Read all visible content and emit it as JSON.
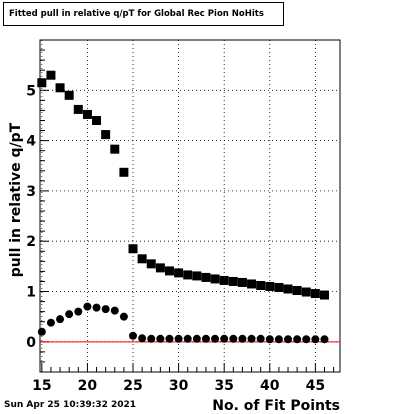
{
  "title": "Fitted pull in relative q/pT for Global Rec Pion NoHits",
  "timestamp": "Sun Apr 25 10:39:32 2021",
  "chart_data": {
    "type": "scatter",
    "title": "Fitted pull in relative q/pT for Global Rec Pion NoHits",
    "xlabel": "No. of Fit Points",
    "ylabel": "pull in relative q/pT",
    "xlim": [
      14.8,
      47.7
    ],
    "ylim": [
      -0.6,
      6.0
    ],
    "x_ticks": [
      15,
      20,
      25,
      30,
      35,
      40,
      45
    ],
    "y_ticks": [
      0,
      1,
      2,
      3,
      4,
      5
    ],
    "grid": true,
    "reference_line": {
      "y": 0,
      "color": "#ff0000"
    },
    "series": [
      {
        "marker": "square",
        "color": "#000000",
        "x": [
          15,
          16,
          17,
          18,
          19,
          20,
          21,
          22,
          23,
          24,
          25,
          26,
          27,
          28,
          29,
          30,
          31,
          32,
          33,
          34,
          35,
          36,
          37,
          38,
          39,
          40,
          41,
          42,
          43,
          44,
          45,
          46
        ],
        "y": [
          5.15,
          5.3,
          5.05,
          4.9,
          4.62,
          4.52,
          4.4,
          4.12,
          3.83,
          3.37,
          1.85,
          1.65,
          1.55,
          1.47,
          1.41,
          1.37,
          1.33,
          1.31,
          1.28,
          1.25,
          1.22,
          1.2,
          1.18,
          1.15,
          1.12,
          1.1,
          1.08,
          1.05,
          1.02,
          0.99,
          0.96,
          0.93
        ]
      },
      {
        "marker": "circle",
        "color": "#000000",
        "x": [
          15,
          16,
          17,
          18,
          19,
          20,
          21,
          22,
          23,
          24,
          25,
          26,
          27,
          28,
          29,
          30,
          31,
          32,
          33,
          34,
          35,
          36,
          37,
          38,
          39,
          40,
          41,
          42,
          43,
          44,
          45,
          46
        ],
        "y": [
          0.2,
          0.38,
          0.45,
          0.55,
          0.6,
          0.7,
          0.68,
          0.65,
          0.62,
          0.5,
          0.12,
          0.07,
          0.06,
          0.06,
          0.06,
          0.06,
          0.06,
          0.06,
          0.06,
          0.06,
          0.06,
          0.06,
          0.06,
          0.06,
          0.06,
          0.05,
          0.05,
          0.05,
          0.05,
          0.05,
          0.05,
          0.05
        ]
      }
    ]
  }
}
